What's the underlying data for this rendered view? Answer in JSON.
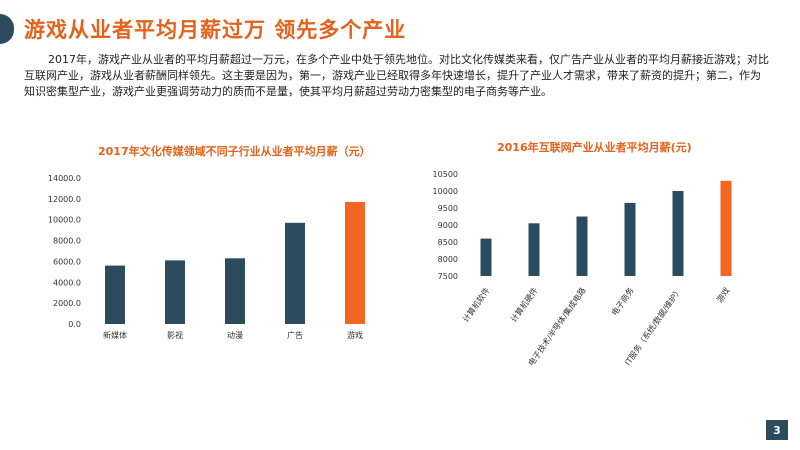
{
  "header": {
    "title": "游戏从业者平均月薪过万 领先多个产业"
  },
  "intro": {
    "text": "2017年，游戏产业从业者的平均月薪超过一万元，在多个产业中处于领先地位。对比文化传媒类来看，仅广告产业从业者的平均月薪接近游戏；对比互联网产业，游戏从业者薪酬同样领先。这主要是因为，第一，游戏产业已经取得多年快速增长，提升了产业人才需求，带来了薪资的提升；第二，作为知识密集型产业，游戏产业更强调劳动力的质而不是量，使其平均月薪超过劳动力密集型的电子商务等产业。"
  },
  "page_number": "3",
  "colors": {
    "accent": "#e4621b",
    "bar": "#2d4b5e",
    "highlight_bar": "#f26522"
  },
  "chart_data": [
    {
      "type": "bar",
      "title": "2017年文化传媒领域不同子行业从业者平均月薪（元）",
      "categories": [
        "新媒体",
        "影视",
        "动漫",
        "广告",
        "游戏"
      ],
      "values": [
        5600,
        6100,
        6300,
        9700,
        11700
      ],
      "highlight": "游戏",
      "ylim": [
        0,
        14000
      ],
      "yticks": [
        "0.0",
        "2000.0",
        "4000.0",
        "6000.0",
        "8000.0",
        "10000.0",
        "12000.0",
        "14000.0"
      ],
      "grid": false
    },
    {
      "type": "bar",
      "title": "2016年互联网产业从业者平均月薪(元)",
      "categories": [
        "计算机软件",
        "计算机硬件",
        "电子技术/半导体/集成电路",
        "电子商务",
        "IT服务（系统/数据/维护）",
        "游戏"
      ],
      "values": [
        8600,
        9050,
        9250,
        9650,
        10000,
        10300
      ],
      "highlight": "游戏",
      "ylim": [
        7500,
        10500
      ],
      "yticks": [
        "7500",
        "8000",
        "8500",
        "9000",
        "9500",
        "10000",
        "10500"
      ],
      "grid": false
    }
  ]
}
